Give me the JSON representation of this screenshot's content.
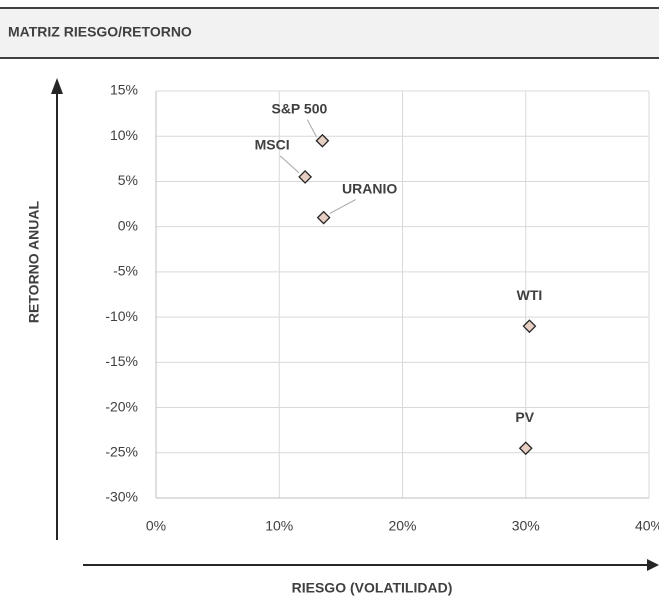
{
  "chart_data": {
    "type": "scatter",
    "title": "MATRIZ RIESGO/RETORNO",
    "x_label": "RIESGO (VOLATILIDAD)",
    "y_label": "RETORNO ANUAL",
    "points": [
      {
        "label": "S&P 500",
        "x": 13.5,
        "y": 9.5
      },
      {
        "label": "MSCI",
        "x": 12.1,
        "y": 5.5
      },
      {
        "label": "URANIO",
        "x": 13.6,
        "y": 1
      },
      {
        "label": "WTI",
        "x": 30.3,
        "y": -11
      },
      {
        "label": "PV",
        "x": 30,
        "y": -24.5
      }
    ],
    "color": "#e8cfc3",
    "xlim": [
      0,
      40
    ],
    "xticks": [
      {
        "value": 0,
        "label": "0%"
      },
      {
        "value": 10,
        "label": "10%"
      },
      {
        "value": 20,
        "label": "20%"
      },
      {
        "value": 30,
        "label": "30%"
      },
      {
        "value": 40,
        "label": "40%"
      }
    ],
    "ylim": [
      -30,
      15
    ],
    "yticks": [
      {
        "value": 15,
        "label": "15%"
      },
      {
        "value": 10,
        "label": "10%"
      },
      {
        "value": 5,
        "label": "5%"
      },
      {
        "value": 0,
        "label": "0%"
      },
      {
        "value": -5,
        "label": "-5%"
      },
      {
        "value": -10,
        "label": "-10%"
      },
      {
        "value": -15,
        "label": "-15%"
      },
      {
        "value": -20,
        "label": "-20%"
      },
      {
        "value": -25,
        "label": "-25%"
      },
      {
        "value": -30,
        "label": "-30%"
      }
    ],
    "grid": true
  }
}
